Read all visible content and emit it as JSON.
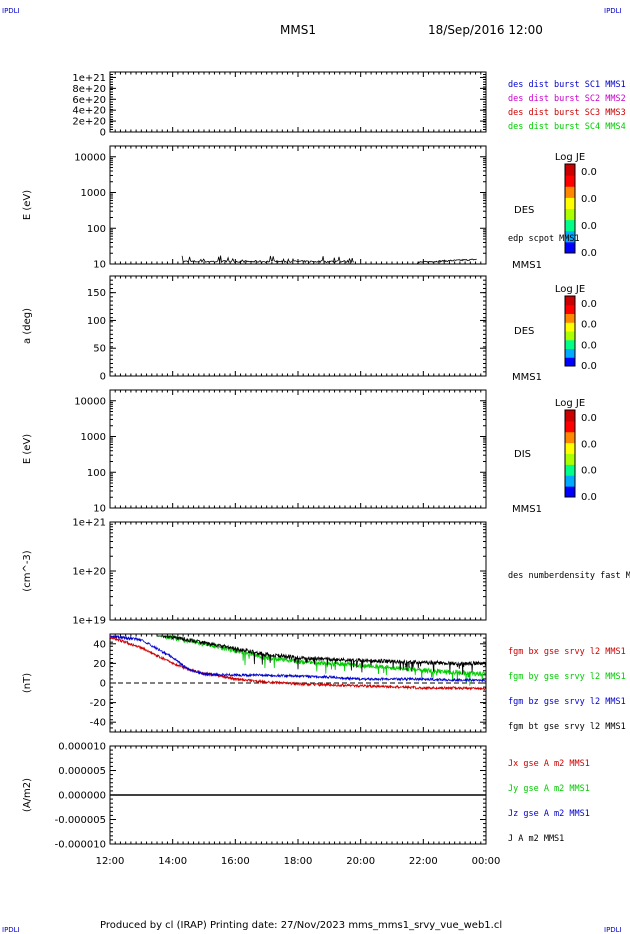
{
  "header": {
    "corner_tl": "IPDLI",
    "corner_tr": "IPDLI",
    "corner_bl": "IPDLI",
    "corner_br": "IPDLI",
    "mission": "MMS1",
    "date": "18/Sep/2016 12:00"
  },
  "footer": {
    "text": "Produced by cl (IRAP)   Printing date: 27/Nov/2023   mms_mms1_srvy_vue_web1.cl"
  },
  "colors": {
    "c1": "#0000cc",
    "c2": "#cc00cc",
    "c3": "#cc0000",
    "c4": "#00cc00",
    "bt": "#000000"
  },
  "chart_data": [
    {
      "type": "line",
      "ylabel": "",
      "y_ticks": [
        "1e+21",
        "8e+20",
        "6e+20",
        "4e+20",
        "2e+20",
        "0"
      ],
      "y_values": [
        1e+21,
        8e+20,
        6e+20,
        4e+20,
        2e+20,
        0
      ],
      "ylim": [
        0,
        1.1e+21
      ],
      "reference_line": 0,
      "legend": [
        "des dist burst SC1 MMS1",
        "des dist burst SC2 MMS2",
        "des dist burst SC3 MMS3",
        "des dist burst SC4 MMS4"
      ]
    },
    {
      "type": "heatmap",
      "ylabel": "E (eV)",
      "y_scale": "log",
      "y_ticks": [
        "10000",
        "1000",
        "100",
        "10"
      ],
      "ylim": [
        10,
        20000
      ],
      "panel_label": "DES",
      "overlay_label": "edp scpot MMS1",
      "satellite_label": "MMS1",
      "colorbar": {
        "title": "Log JE",
        "ticks": [
          "0.0",
          "0.0",
          "0.0",
          "0.0"
        ]
      },
      "overlay_series": {
        "name": "edp scpot MMS1",
        "approx_value_eV": 11
      }
    },
    {
      "type": "heatmap",
      "ylabel": "a (deg)",
      "y_ticks": [
        "150",
        "100",
        "50",
        "0"
      ],
      "ylim": [
        0,
        180
      ],
      "panel_label": "DES",
      "satellite_label": "MMS1",
      "colorbar": {
        "title": "Log JE",
        "ticks": [
          "0.0",
          "0.0",
          "0.0",
          "0.0"
        ]
      }
    },
    {
      "type": "heatmap",
      "ylabel": "E (eV)",
      "y_scale": "log",
      "y_ticks": [
        "10000",
        "1000",
        "100",
        "10"
      ],
      "ylim": [
        10,
        20000
      ],
      "panel_label": "DIS",
      "satellite_label": "MMS1",
      "colorbar": {
        "title": "Log JE",
        "ticks": [
          "0.0",
          "0.0",
          "0.0",
          "0.0"
        ]
      }
    },
    {
      "type": "line",
      "ylabel": "(cm^-3)",
      "y_scale": "log",
      "y_ticks": [
        "1e+21",
        "1e+20",
        "1e+19"
      ],
      "ylim": [
        1e+19,
        1e+21
      ],
      "legend": [
        "des numberdensity fast M"
      ]
    },
    {
      "type": "line",
      "ylabel": "(nT)",
      "y_ticks": [
        "40",
        "20",
        "0",
        "-20",
        "-40"
      ],
      "y_values": [
        40,
        20,
        0,
        -20,
        -40
      ],
      "ylim": [
        -50,
        50
      ],
      "reference_line": 0,
      "legend": [
        "fgm bx gse srvy l2 MMS1",
        "fgm by gse srvy l2 MMS1",
        "fgm bz gse srvy l2 MMS1",
        "fgm bt gse srvy l2 MMS1"
      ],
      "series": [
        {
          "name": "fgm bx gse srvy l2 MMS1",
          "x": [
            12,
            13,
            14,
            14.5,
            15,
            16,
            17,
            18,
            19,
            20,
            21,
            22,
            23,
            24
          ],
          "values": [
            47,
            36,
            20,
            14,
            10,
            4,
            1,
            -1,
            -2,
            -3,
            -4,
            -5,
            -5,
            -6
          ]
        },
        {
          "name": "fgm by gse srvy l2 MMS1",
          "x": [
            13.5,
            14,
            15,
            16,
            17,
            18,
            19,
            20,
            21,
            22,
            23,
            24
          ],
          "values": [
            50,
            46,
            40,
            33,
            26,
            22,
            20,
            18,
            16,
            13,
            11,
            9
          ]
        },
        {
          "name": "fgm bz gse srvy l2 MMS1",
          "x": [
            12,
            13,
            14,
            14.5,
            15,
            16,
            17,
            18,
            19,
            20,
            21,
            22,
            23,
            24
          ],
          "values": [
            48,
            44,
            26,
            14,
            9,
            8,
            8,
            7,
            6,
            4,
            4,
            4,
            3,
            3
          ]
        },
        {
          "name": "fgm bt gse srvy l2 MMS1",
          "x": [
            13.5,
            14,
            15,
            16,
            17,
            18,
            19,
            20,
            21,
            22,
            23,
            24
          ],
          "values": [
            50,
            47,
            41,
            35,
            29,
            26,
            24,
            23,
            22,
            21,
            20,
            20
          ]
        }
      ]
    },
    {
      "type": "line",
      "ylabel": "(A/m2)",
      "y_ticks": [
        "0.000010",
        "0.000005",
        "0.000000",
        "-0.000005",
        "-0.000010"
      ],
      "y_values": [
        1e-05,
        5e-06,
        0,
        -5e-06,
        -1e-05
      ],
      "ylim": [
        -1e-05,
        1e-05
      ],
      "legend": [
        "Jx gse A m2 MMS1",
        "Jy gse A m2 MMS1",
        "Jz gse A m2 MMS1",
        "J A m2 MMS1"
      ],
      "series": [
        {
          "name": "J A m2 MMS1",
          "values": [
            0,
            0
          ]
        }
      ]
    }
  ],
  "x_axis": {
    "ticks": [
      "12:00",
      "14:00",
      "16:00",
      "18:00",
      "20:00",
      "22:00",
      "00:00"
    ],
    "xlim": [
      12,
      24
    ]
  }
}
